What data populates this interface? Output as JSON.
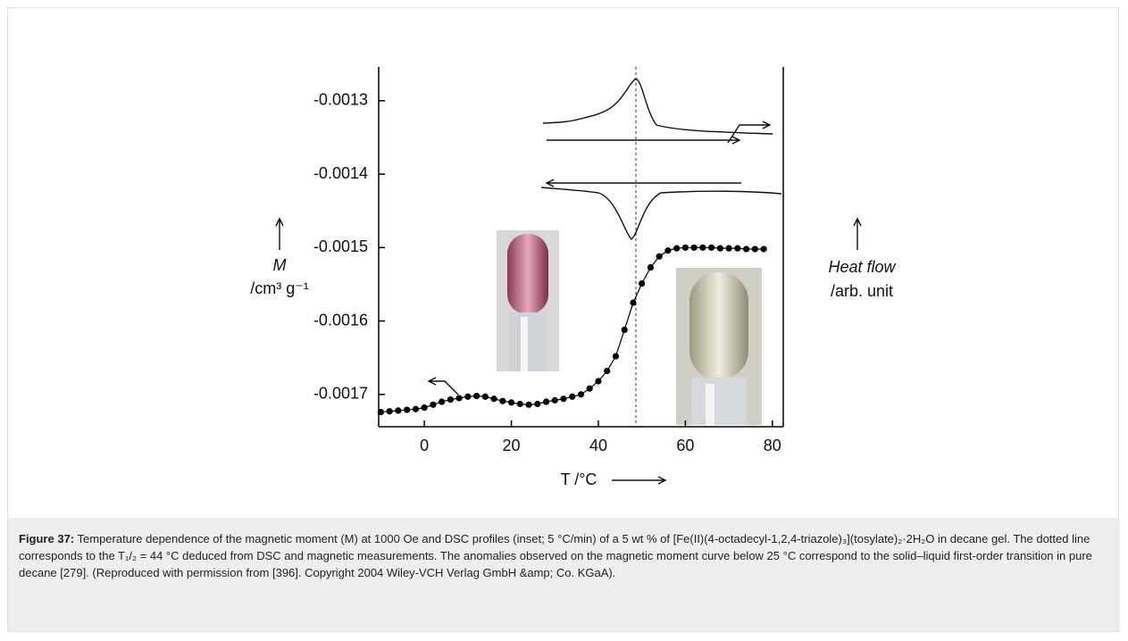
{
  "chart_data": {
    "type": "scatter",
    "x": [
      -10,
      -8,
      -6,
      -4,
      -2,
      0,
      2,
      4,
      6,
      8,
      10,
      12,
      14,
      16,
      18,
      20,
      22,
      24,
      26,
      28,
      30,
      32,
      34,
      36,
      38,
      40,
      42,
      44,
      46,
      48,
      50,
      52,
      54,
      56,
      58,
      60,
      62,
      64,
      66,
      68,
      70,
      72,
      74,
      76,
      78
    ],
    "values": [
      -0.001724,
      -0.001723,
      -0.001722,
      -0.001721,
      -0.00172,
      -0.001718,
      -0.001714,
      -0.00171,
      -0.001707,
      -0.001705,
      -0.001703,
      -0.001702,
      -0.001703,
      -0.001706,
      -0.001709,
      -0.001711,
      -0.001713,
      -0.001714,
      -0.001713,
      -0.00171,
      -0.001708,
      -0.001706,
      -0.001703,
      -0.0017,
      -0.001692,
      -0.001682,
      -0.001668,
      -0.001648,
      -0.001612,
      -0.001575,
      -0.001549,
      -0.001527,
      -0.001512,
      -0.001504,
      -0.001501,
      -0.0015,
      -0.0015,
      -0.0015,
      -0.0015,
      -0.001501,
      -0.001501,
      -0.001501,
      -0.001502,
      -0.001502,
      -0.001502
    ],
    "color": "#000000",
    "xlim": [
      -10.5,
      82.5
    ],
    "xticks": [
      0,
      20,
      40,
      60,
      80
    ],
    "ylim": [
      -0.001744,
      -0.001254
    ],
    "yticks": [
      -0.0017,
      -0.0016,
      -0.0015,
      -0.0014,
      -0.0013
    ],
    "xlabel": "T /°C",
    "ylabel": [
      "M",
      "/cm³ g⁻¹"
    ],
    "y2label": [
      "Heat flow",
      "/arb. unit"
    ]
  },
  "caption": {
    "label": "Figure 37:",
    "text": "Temperature dependence of the magnetic moment (M) at 1000 Oe and DSC profiles (inset; 5 °C/min) of a 5 wt % of [Fe(II)(4-octadecyl-1,2,4-triazole)₃](tosylate)₂·2H₂O in decane gel. The dotted line corresponds to the T₁/₂ = 44 °C deduced from DSC and magnetic measurements. The anomalies observed on the magnetic moment curve below 25 °C correspond to the solid–liquid first-order transition in pure decane [279]. (Reproduced with permission from [396]. Copyright 2004 Wiley-VCH Verlag GmbH &amp; Co. KGaA)."
  }
}
